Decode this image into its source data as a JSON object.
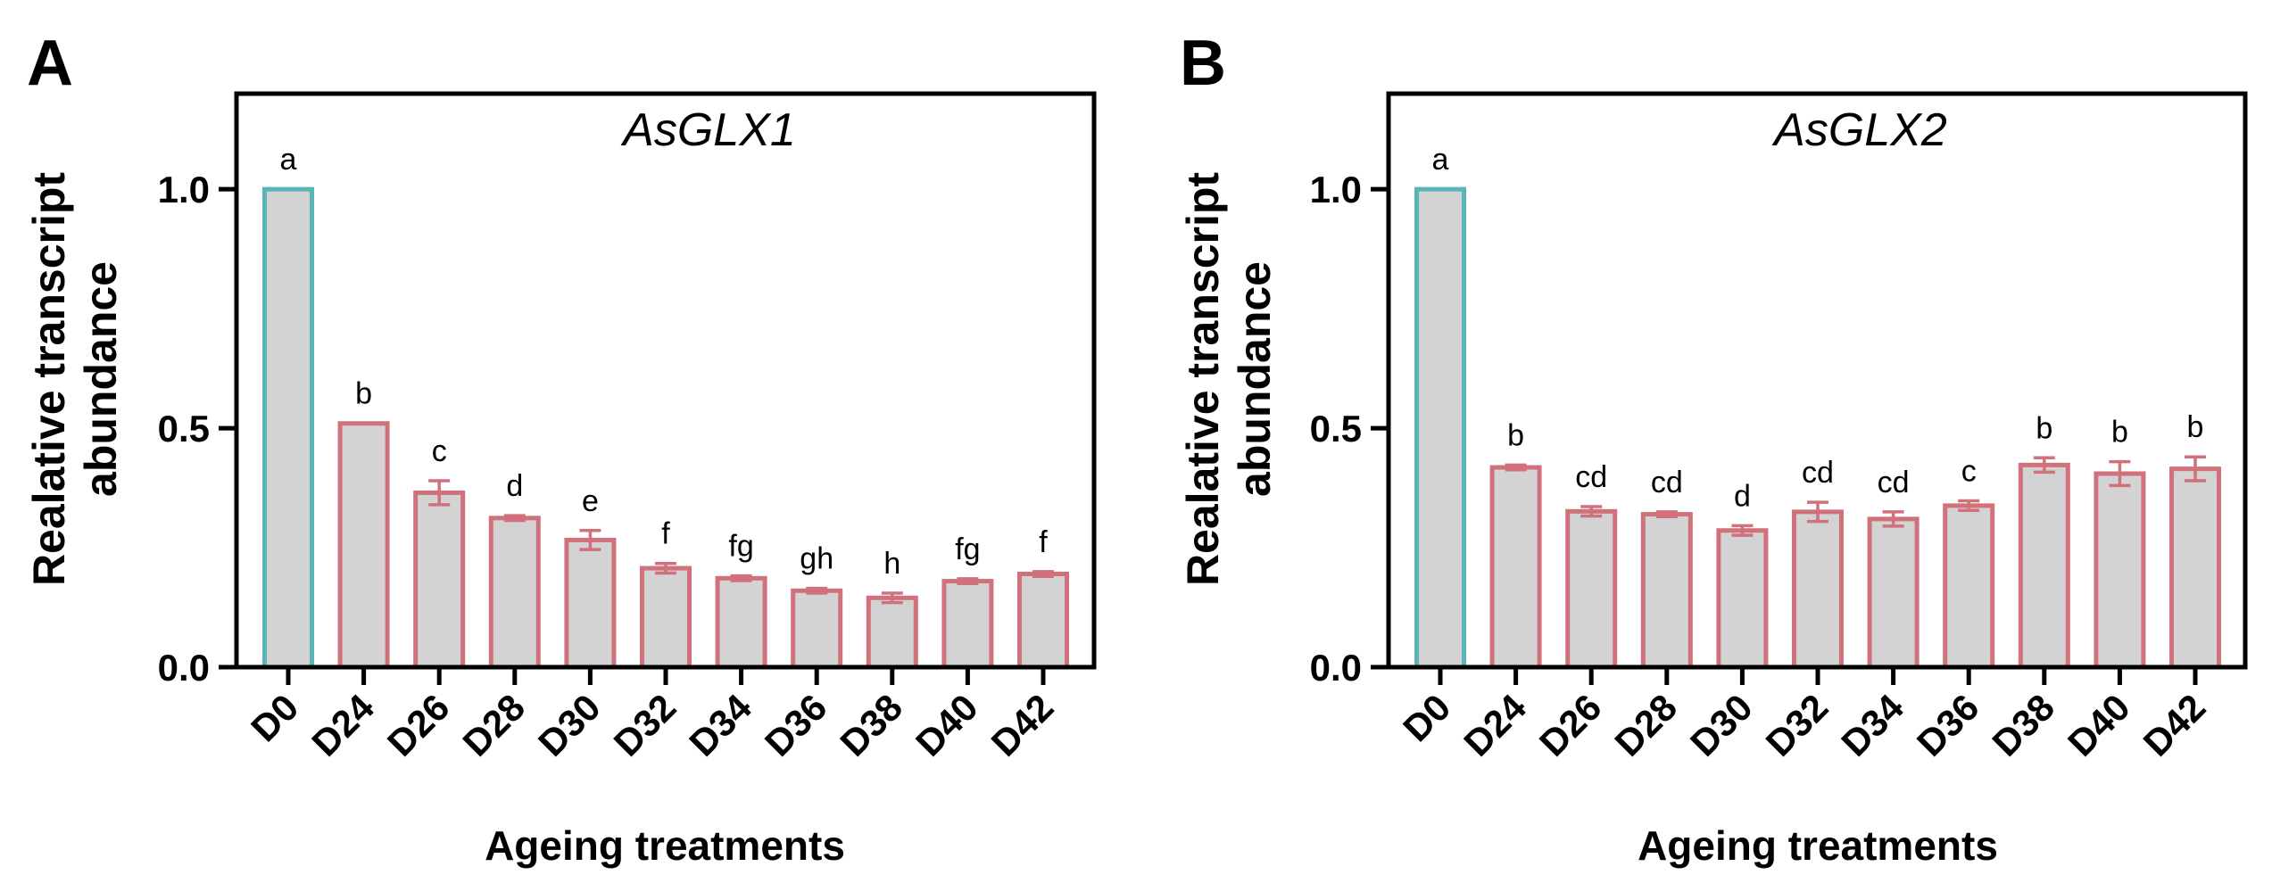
{
  "chart_data": [
    {
      "type": "bar",
      "panel": "A",
      "title": "AsGLX1",
      "xlabel": "Ageing treatments",
      "ylabel_lines": [
        "Realative transcript",
        "abundance"
      ],
      "ylim": [
        0,
        1.2
      ],
      "yticks": [
        0.0,
        0.5,
        1.0
      ],
      "ytick_labels": [
        "0.0",
        "0.5",
        "1.0"
      ],
      "categories": [
        "D0",
        "D24",
        "D26",
        "D28",
        "D30",
        "D32",
        "D34",
        "D36",
        "D38",
        "D40",
        "D42"
      ],
      "values": [
        1.0,
        0.51,
        0.365,
        0.312,
        0.266,
        0.207,
        0.186,
        0.16,
        0.145,
        0.18,
        0.195
      ],
      "errors": [
        0,
        0,
        0.025,
        0.005,
        0.02,
        0.01,
        0.005,
        0.005,
        0.01,
        0.005,
        0.005
      ],
      "significance": [
        "a",
        "b",
        "c",
        "d",
        "e",
        "f",
        "fg",
        "gh",
        "h",
        "fg",
        "f"
      ],
      "control_color": "#5ab5b8",
      "treatment_color": "#d0717b",
      "fill_color": "#d3d3d3"
    },
    {
      "type": "bar",
      "panel": "B",
      "title": "AsGLX2",
      "xlabel": "Ageing treatments",
      "ylabel_lines": [
        "Realative transcript",
        "abundance"
      ],
      "ylim": [
        0,
        1.2
      ],
      "yticks": [
        0.0,
        0.5,
        1.0
      ],
      "ytick_labels": [
        "0.0",
        "0.5",
        "1.0"
      ],
      "categories": [
        "D0",
        "D24",
        "D26",
        "D28",
        "D30",
        "D32",
        "D34",
        "D36",
        "D38",
        "D40",
        "D42"
      ],
      "values": [
        1.0,
        0.418,
        0.326,
        0.32,
        0.286,
        0.325,
        0.31,
        0.338,
        0.423,
        0.405,
        0.415
      ],
      "errors": [
        0,
        0.005,
        0.01,
        0.005,
        0.01,
        0.02,
        0.015,
        0.01,
        0.015,
        0.025,
        0.025
      ],
      "significance": [
        "a",
        "b",
        "cd",
        "cd",
        "d",
        "cd",
        "cd",
        "c",
        "b",
        "b",
        "b"
      ],
      "control_color": "#5ab5b8",
      "treatment_color": "#d0717b",
      "fill_color": "#d3d3d3"
    }
  ]
}
